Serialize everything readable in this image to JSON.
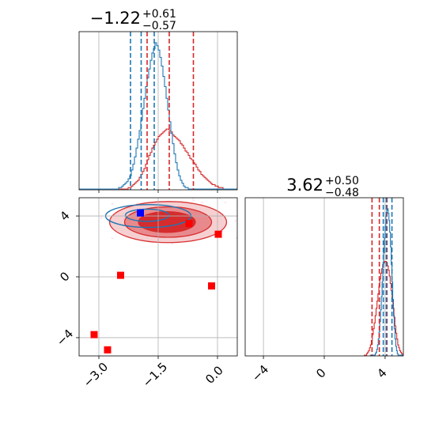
{
  "chart_data": {
    "type": "corner",
    "colors": {
      "blue": "#1f77b4",
      "red": "#d62728",
      "red_fill_dark": "#d62728",
      "red_fill_mid": "#e8878a",
      "red_fill_light": "#f6cdcf",
      "grid": "#b0b0b0",
      "marker_red": "#ff0000",
      "marker_blue": "#0000ff",
      "scatter_pink": "#f4a6d7"
    },
    "params": [
      {
        "title": {
          "median": "−1.22",
          "upper": "+0.61",
          "lower": "−0.57"
        },
        "xlim": [
          -3.5,
          0.5
        ],
        "ticks": [
          -3.0,
          -1.5,
          0.0
        ],
        "tick_labels": [
          "−3.0",
          "−1.5",
          "0.0"
        ],
        "hist_blue": {
          "bins_lo": -3.5,
          "bins_hi": 0.5,
          "counts": [
            0,
            0,
            0,
            0,
            0,
            0,
            0,
            0,
            0,
            0,
            0,
            0,
            0,
            0,
            0,
            0,
            0,
            0,
            0,
            0,
            0,
            0,
            0,
            0,
            0,
            1,
            1,
            2,
            3,
            4,
            5,
            7,
            9,
            13,
            17,
            22,
            28,
            34,
            40,
            47,
            55,
            62,
            70,
            76,
            82,
            88,
            93,
            96,
            100,
            98,
            95,
            90,
            84,
            77,
            70,
            62,
            54,
            46,
            38,
            31,
            24,
            18,
            13,
            9,
            6,
            4,
            2,
            1,
            1,
            0,
            0,
            0,
            0,
            0,
            0,
            0,
            0,
            0,
            0,
            0,
            0,
            0,
            0,
            0,
            0,
            0,
            0,
            0,
            0,
            0,
            0,
            0,
            0,
            0,
            0,
            0,
            0,
            0,
            0,
            0
          ],
          "quantiles": [
            -2.2,
            -1.93,
            -1.6
          ]
        },
        "hist_red": {
          "bins_lo": -3.5,
          "bins_hi": 0.5,
          "counts": [
            0,
            0,
            0,
            0,
            0,
            0,
            0,
            0,
            0,
            0,
            0,
            0,
            0,
            0,
            0,
            0,
            0,
            0,
            0,
            0,
            0,
            0,
            0,
            0,
            0,
            0,
            0,
            0,
            0,
            0,
            0,
            1,
            1,
            2,
            3,
            4,
            5,
            6,
            8,
            10,
            12,
            14,
            17,
            20,
            23,
            25,
            28,
            30,
            32,
            34,
            36,
            37,
            38,
            39,
            40,
            41,
            41,
            40,
            39,
            37,
            36,
            35,
            34,
            33,
            31,
            30,
            28,
            26,
            25,
            23,
            21,
            20,
            18,
            17,
            15,
            13,
            12,
            10,
            9,
            8,
            7,
            6,
            5,
            4,
            3,
            3,
            2,
            2,
            1,
            1,
            1,
            0,
            0,
            0,
            0,
            0,
            0,
            0,
            0,
            0
          ],
          "quantiles": [
            -1.78,
            -1.22,
            -0.61
          ]
        }
      },
      {
        "title": {
          "median": "3.62",
          "upper": "+0.50",
          "lower": "−0.48"
        },
        "xlim": [
          -5.2,
          5.2
        ],
        "ticks": [
          -4,
          0,
          4
        ],
        "tick_labels": [
          "−4",
          "0",
          "4"
        ],
        "hist_blue": {
          "bins_lo": 3.0,
          "bins_hi": 5.2,
          "counts": [
            0,
            0,
            0,
            0,
            0,
            0,
            0,
            1,
            2,
            4,
            7,
            11,
            16,
            23,
            31,
            40,
            50,
            60,
            70,
            80,
            88,
            95,
            99,
            100,
            97,
            92,
            84,
            74,
            62,
            50,
            38,
            27,
            18,
            11,
            6,
            3,
            1,
            0,
            0,
            0,
            0,
            0,
            0,
            0
          ],
          "quantiles": [
            3.88,
            4.08,
            4.45
          ]
        },
        "hist_red": {
          "bins_lo": 2.6,
          "bins_hi": 5.2,
          "counts": [
            0,
            0,
            0,
            1,
            2,
            3,
            5,
            7,
            10,
            14,
            18,
            22,
            27,
            32,
            37,
            42,
            47,
            52,
            56,
            59,
            62,
            63,
            64,
            64,
            63,
            61,
            58,
            54,
            49,
            44,
            38,
            32,
            26,
            20,
            15,
            11,
            7,
            5,
            3,
            2,
            1,
            0
          ],
          "quantiles": [
            3.14,
            3.62,
            4.12
          ]
        }
      }
    ],
    "joint": {
      "xlim": [
        -3.5,
        0.5
      ],
      "ylim": [
        -5.2,
        5.2
      ],
      "y_ticks": [
        -4,
        0,
        4
      ],
      "y_tick_labels": [
        "−4",
        "0",
        "4"
      ],
      "red_contours": [
        {
          "level": "outer",
          "cx": -1.25,
          "cy": 3.6,
          "rx": 1.48,
          "ry": 1.35
        },
        {
          "level": "mid",
          "cx": -1.25,
          "cy": 3.6,
          "rx": 1.1,
          "ry": 1.0
        },
        {
          "level": "inner",
          "cx": -1.28,
          "cy": 3.6,
          "rx": 0.72,
          "ry": 0.68
        }
      ],
      "blue_contours": [
        {
          "level": "outer",
          "cx": -1.75,
          "cy": 4.0,
          "rx": 1.08,
          "ry": 0.75
        },
        {
          "level": "inner",
          "cx": -1.78,
          "cy": 4.05,
          "rx": 0.55,
          "ry": 0.4
        }
      ],
      "red_markers": [
        {
          "x": -2.45,
          "y": 0.1
        },
        {
          "x": -0.72,
          "y": 3.5
        },
        {
          "x": 0.02,
          "y": 2.8
        },
        {
          "x": -0.15,
          "y": -0.6
        },
        {
          "x": -3.12,
          "y": -3.8
        },
        {
          "x": -2.78,
          "y": -4.8
        }
      ],
      "blue_markers": [
        {
          "x": -1.95,
          "y": 4.2
        }
      ]
    }
  }
}
